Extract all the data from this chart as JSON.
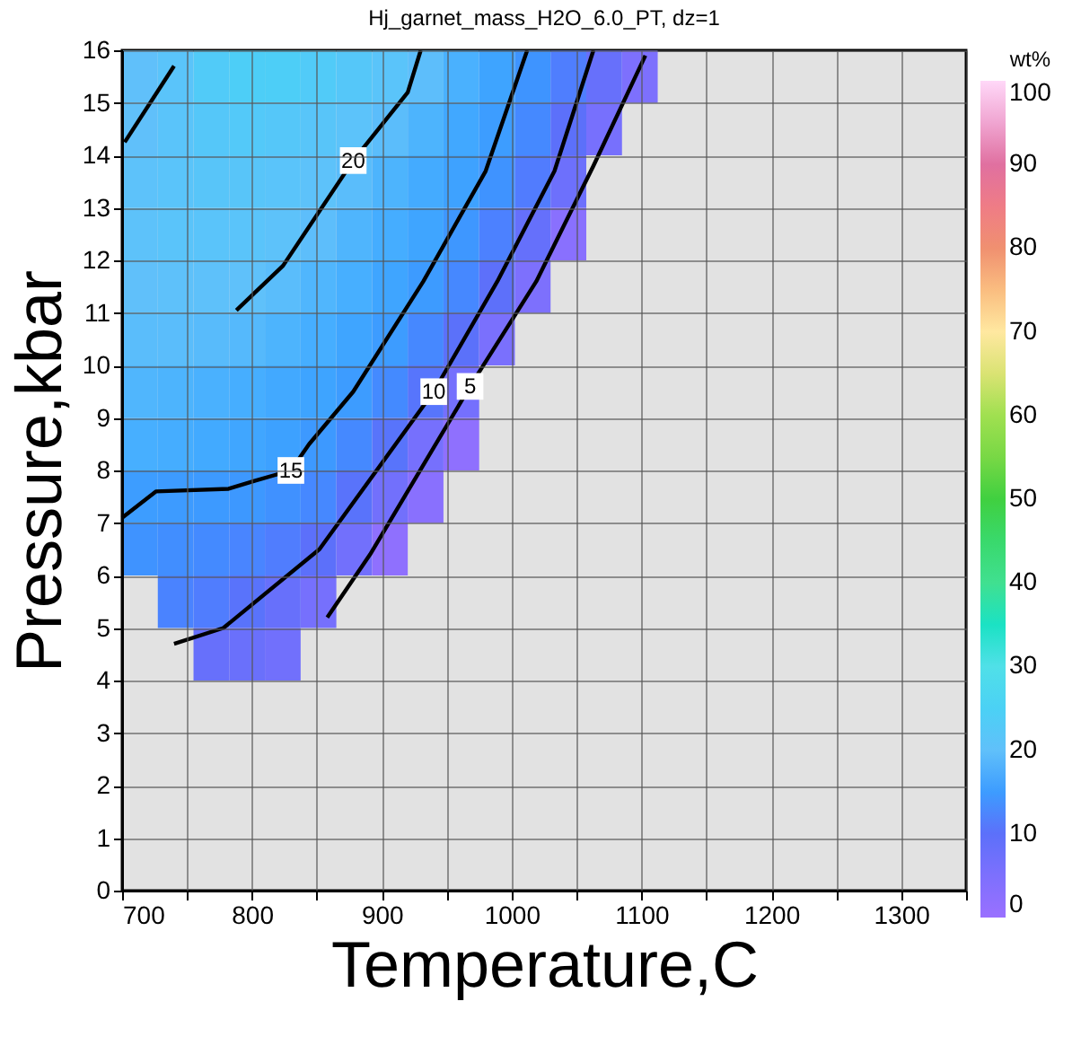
{
  "chart_data": {
    "type": "heatmap",
    "title": "Hj_garnet_mass_H2O_6.0_PT, dz=1",
    "xlabel": "Temperature,C",
    "ylabel": "Pressure,kbar",
    "clabel": "wt%",
    "x": [
      713.75,
      741.25,
      768.75,
      796.25,
      823.75,
      851.25,
      878.75,
      906.25,
      933.75,
      961.25,
      988.75,
      1016.25,
      1043.75,
      1071.25,
      1098.75,
      1126.25
    ],
    "y": [
      15.5,
      14.5,
      13.5,
      12.5,
      11.5,
      10.5,
      9.5,
      8.5,
      7.5,
      6.5,
      5.5,
      4.5
    ],
    "cells": [
      [
        20,
        21,
        23,
        24,
        24,
        23,
        22,
        21,
        19.7,
        17.8,
        16,
        14,
        11.4,
        8.4,
        5,
        null
      ],
      [
        20,
        21,
        22,
        22.5,
        22,
        21.5,
        20.8,
        19.6,
        18.2,
        16.6,
        15.1,
        12.7,
        10,
        6,
        null,
        null
      ],
      [
        20.5,
        21,
        21.5,
        21.5,
        21,
        20.5,
        19.5,
        18.2,
        17,
        15.7,
        13.9,
        11.2,
        7.6,
        null,
        null,
        null
      ],
      [
        20.5,
        21,
        21,
        21,
        20.5,
        19.7,
        18.4,
        17.2,
        16.2,
        14.3,
        11.8,
        8.7,
        3,
        null,
        null,
        null
      ],
      [
        20,
        20.3,
        20.4,
        20.2,
        19.5,
        18.5,
        17.5,
        16.2,
        14.8,
        12.5,
        9.9,
        5,
        null,
        null,
        null,
        null
      ],
      [
        19.5,
        19.5,
        19.3,
        19,
        18.2,
        17.3,
        16.2,
        14.9,
        12.5,
        10.1,
        5.5,
        null,
        null,
        null,
        null,
        null
      ],
      [
        18.5,
        18.2,
        17.8,
        17.3,
        16.7,
        16,
        15,
        12.8,
        10.5,
        6.3,
        null,
        null,
        null,
        null,
        null,
        null
      ],
      [
        17.5,
        17.2,
        16.8,
        16.3,
        15.6,
        14.6,
        12.7,
        10.4,
        6.2,
        2,
        null,
        null,
        null,
        null,
        null,
        null
      ],
      [
        15.1,
        14.8,
        14.7,
        14.5,
        13.6,
        12.6,
        10.3,
        6.8,
        3,
        null,
        null,
        null,
        null,
        null,
        null,
        null
      ],
      [
        13.8,
        13.3,
        12.8,
        12.2,
        11.3,
        10,
        6.8,
        2,
        null,
        null,
        null,
        null,
        null,
        null,
        null,
        null
      ],
      [
        null,
        12,
        11.3,
        10.3,
        8.5,
        6.2,
        null,
        null,
        null,
        null,
        null,
        null,
        null,
        null,
        null,
        null
      ],
      [
        null,
        null,
        8.5,
        8,
        7,
        null,
        null,
        null,
        null,
        null,
        null,
        null,
        null,
        null,
        null,
        null
      ]
    ],
    "series": [
      {
        "type": "line",
        "name": "5",
        "color": "#000000",
        "x": [
          1103,
          1063,
          1019,
          968,
          891,
          858
        ],
        "values": [
          15.9,
          13.8,
          11.6,
          9.6,
          6.4,
          5.2
        ]
      },
      {
        "type": "line",
        "name": "10",
        "color": "#000000",
        "x": [
          1063,
          1033,
          989,
          940,
          852,
          778,
          740
        ],
        "values": [
          16,
          13.7,
          11.6,
          9.5,
          6.5,
          5.0,
          4.7
        ]
      },
      {
        "type": "line",
        "name": "15",
        "color": "#000000",
        "x": [
          1012,
          980,
          932,
          878,
          844,
          830,
          802,
          782,
          726,
          700
        ],
        "values": [
          16,
          13.7,
          11.6,
          9.5,
          8.5,
          8.0,
          7.8,
          7.65,
          7.6,
          7.1
        ]
      },
      {
        "type": "line",
        "name": "20",
        "color": "#000000",
        "x": [
          930,
          920,
          878,
          824,
          788
        ],
        "values": [
          16,
          15.2,
          13.9,
          11.9,
          11.05
        ]
      },
      {
        "type": "line",
        "color": "#000000",
        "x": [
          702,
          740
        ],
        "values": [
          14.25,
          15.7
        ]
      }
    ],
    "xlim": [
      700,
      1350
    ],
    "xticks": [
      700,
      {
        "value": 750,
        "label": null
      },
      800,
      {
        "value": 850,
        "label": null
      },
      900,
      {
        "value": 950,
        "label": null
      },
      1000,
      {
        "value": 1050,
        "label": null
      },
      1100,
      {
        "value": 1150,
        "label": null
      },
      1200,
      {
        "value": 1250,
        "label": null
      },
      1300,
      {
        "value": 1350,
        "label": null
      }
    ],
    "ylim": [
      0,
      16
    ],
    "yticks": [
      0,
      1,
      2,
      3,
      4,
      5,
      6,
      7,
      8,
      9,
      10,
      11,
      12,
      13,
      14,
      15,
      16
    ],
    "clim": [
      0,
      100
    ],
    "cticks": [
      0,
      10,
      20,
      30,
      40,
      50,
      60,
      70,
      80,
      90,
      100
    ],
    "colors": [
      "#9a70ff",
      "#5c70fa",
      "#60c0fa",
      "#50e0e8",
      "#40e090",
      "#40d040",
      "#a0e050",
      "#ffe8a0",
      "#f09070",
      "#e070a0",
      "#ffd8f8"
    ],
    "grid": true
  }
}
